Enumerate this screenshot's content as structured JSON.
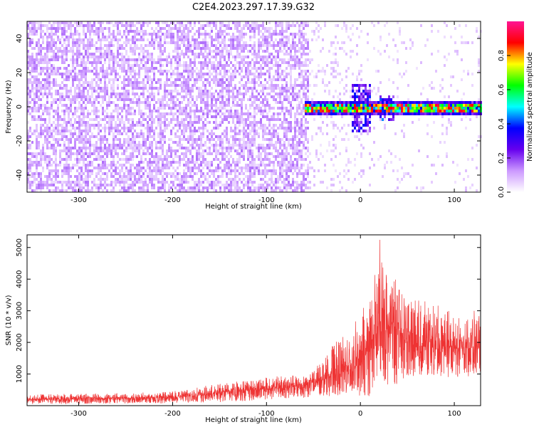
{
  "title": "C2E4.2023.297.17.39.G32",
  "chart_data": [
    {
      "type": "heatmap",
      "xlabel": "Height of straight line (km)",
      "ylabel": "Frequency (Hz)",
      "xlim": [
        -355,
        128
      ],
      "ylim": [
        -50,
        50
      ],
      "xticks": [
        -300,
        -200,
        -100,
        0,
        100
      ],
      "yticks": [
        -40,
        -20,
        0,
        20,
        40
      ],
      "colorbar": {
        "label": "Normalized spectral amplitude",
        "range": [
          0.0,
          1.0
        ],
        "ticks": [
          0.0,
          0.2,
          0.4,
          0.6,
          0.8
        ],
        "colormap": [
          "#ffffff",
          "#cc99ff",
          "#6600ee",
          "#0000ff",
          "#00ffff",
          "#00ff00",
          "#ffff00",
          "#ff0000",
          "#ff1493"
        ]
      },
      "description_values": {
        "noise_region_end_km": -55,
        "signal_band_frequency_hz": 0,
        "signal_start_km": -60,
        "broadband_burst_center_km": 0,
        "secondary_burst_center_km": 28
      }
    },
    {
      "type": "line",
      "xlabel": "Height of straight line (km)",
      "ylabel": "SNR (10 * v/v)",
      "xlim": [
        -355,
        128
      ],
      "ylim": [
        0,
        5400
      ],
      "xticks": [
        -300,
        -200,
        -100,
        0,
        100
      ],
      "yticks": [
        1000,
        2000,
        3000,
        4000,
        5000
      ],
      "series": [
        {
          "color": "#ee3333",
          "envelope_x": [
            -355,
            -300,
            -250,
            -200,
            -170,
            -150,
            -120,
            -100,
            -80,
            -60,
            -50,
            -40,
            -30,
            -20,
            -10,
            0,
            10,
            15,
            20,
            25,
            30,
            40,
            50,
            60,
            80,
            100,
            128
          ],
          "envelope_low": [
            50,
            60,
            70,
            80,
            100,
            110,
            150,
            200,
            220,
            250,
            280,
            300,
            300,
            350,
            350,
            300,
            300,
            700,
            500,
            800,
            600,
            700,
            800,
            900,
            900,
            900,
            900
          ],
          "envelope_high": [
            350,
            380,
            400,
            450,
            600,
            700,
            850,
            900,
            950,
            1000,
            1100,
            1500,
            1900,
            2200,
            2500,
            2900,
            3500,
            4200,
            5400,
            4700,
            4600,
            3800,
            3600,
            3400,
            3200,
            3000,
            3000
          ],
          "envelope_mean": [
            180,
            200,
            220,
            250,
            320,
            400,
            470,
            520,
            560,
            620,
            700,
            800,
            900,
            1000,
            1100,
            1300,
            1600,
            2100,
            2300,
            2400,
            2300,
            2200,
            2000,
            1900,
            1800,
            1800,
            1800
          ]
        }
      ]
    }
  ]
}
